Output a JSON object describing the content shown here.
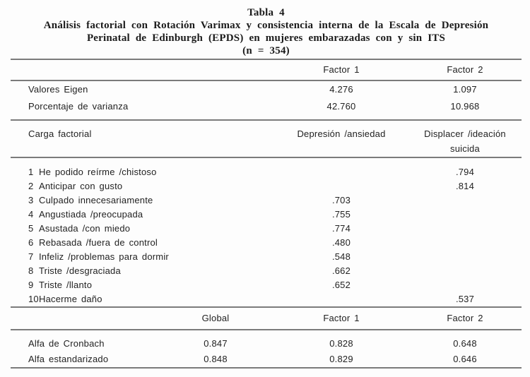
{
  "title": {
    "label": "Tabla 4",
    "line1": "Análisis factorial con Rotación Varimax y consistencia interna de la Escala de Depresión",
    "line2": "Perinatal de Edinburgh (EPDS) en mujeres embarazadas con y sin ITS",
    "line3": "(n = 354)"
  },
  "factor_header": {
    "factor1": "Factor 1",
    "factor2": "Factor 2"
  },
  "eigen_rows": [
    {
      "label": "Valores Eigen",
      "factor1": "4.276",
      "factor2": "1.097"
    },
    {
      "label": "Porcentaje de varianza",
      "factor1": "42.760",
      "factor2": "10.968"
    }
  ],
  "loadings_header": {
    "label": "Carga factorial",
    "factor1": "Depresión /ansiedad",
    "factor2_line1": "Displacer /ideación",
    "factor2_line2": "suicida"
  },
  "items": [
    {
      "num": "1",
      "label": "He podido reírme /chistoso",
      "factor1": "",
      "factor2": ".794"
    },
    {
      "num": "2",
      "label": "Anticipar con gusto",
      "factor1": "",
      "factor2": ".814"
    },
    {
      "num": "3",
      "label": "Culpado innecesariamente",
      "factor1": ".703",
      "factor2": ""
    },
    {
      "num": "4",
      "label": "Angustiada /preocupada",
      "factor1": ".755",
      "factor2": ""
    },
    {
      "num": "5",
      "label": "Asustada /con miedo",
      "factor1": ".774",
      "factor2": ""
    },
    {
      "num": "6",
      "label": "Rebasada /fuera de control",
      "factor1": ".480",
      "factor2": ""
    },
    {
      "num": "7",
      "label": "Infeliz /problemas para dormir",
      "factor1": ".548",
      "factor2": ""
    },
    {
      "num": "8",
      "label": "Triste /desgraciada",
      "factor1": ".662",
      "factor2": ""
    },
    {
      "num": "9",
      "label": "Triste /llanto",
      "factor1": ".652",
      "factor2": ""
    },
    {
      "num": "10",
      "label": "Hacerme daño",
      "factor1": "",
      "factor2": ".537"
    }
  ],
  "alpha_header": {
    "global": "Global",
    "factor1": "Factor 1",
    "factor2": "Factor 2"
  },
  "alpha_rows": [
    {
      "label": "Alfa de Cronbach",
      "global": "0.847",
      "factor1": "0.828",
      "factor2": "0.648"
    },
    {
      "label": "Alfa estandarizado",
      "global": "0.848",
      "factor1": "0.829",
      "factor2": "0.646"
    }
  ],
  "colors": {
    "background": "#fdfdfd",
    "text": "#222222",
    "rule": "#7b7b7b"
  }
}
